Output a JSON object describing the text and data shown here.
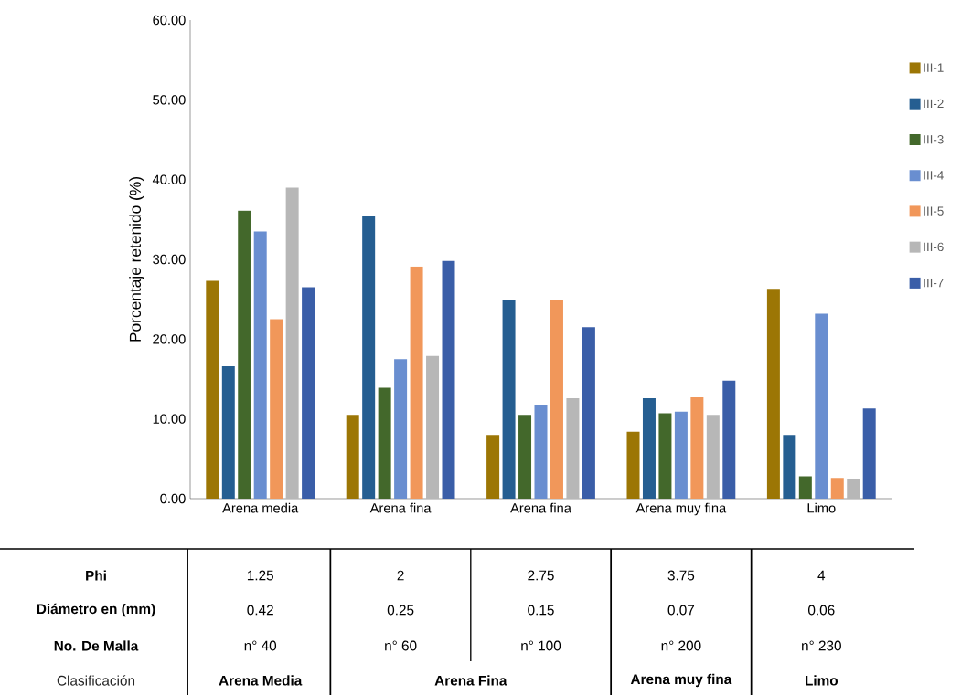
{
  "chart_data": {
    "type": "bar",
    "ylabel": "Porcentaje retenido (%)",
    "categories": [
      "Arena media",
      "Arena fina",
      "Arena fina",
      "Arena muy fina",
      "Limo"
    ],
    "series": [
      {
        "name": "III-1",
        "color": "#9c7605",
        "values": [
          27.3,
          10.5,
          8.0,
          8.4,
          26.3
        ]
      },
      {
        "name": "III-2",
        "color": "#255e91",
        "values": [
          16.6,
          35.5,
          24.9,
          12.6,
          8.0
        ]
      },
      {
        "name": "III-3",
        "color": "#43682b",
        "values": [
          36.1,
          13.9,
          10.5,
          10.7,
          2.8
        ]
      },
      {
        "name": "III-4",
        "color": "#698ed0",
        "values": [
          33.5,
          17.5,
          11.7,
          10.9,
          23.2
        ]
      },
      {
        "name": "III-5",
        "color": "#f1975a",
        "values": [
          22.5,
          29.1,
          24.9,
          12.7,
          2.6
        ]
      },
      {
        "name": "III-6",
        "color": "#b7b7b7",
        "values": [
          39.0,
          17.9,
          12.6,
          10.5,
          2.4
        ]
      },
      {
        "name": "III-7",
        "color": "#3a5ea8",
        "values": [
          26.5,
          29.8,
          21.5,
          14.8,
          11.3
        ]
      }
    ],
    "ylim": [
      0,
      60
    ],
    "yticks": [
      {
        "value": 0,
        "label": "0.00"
      },
      {
        "value": 10,
        "label": "10.00"
      },
      {
        "value": 20,
        "label": "20.00"
      },
      {
        "value": 30,
        "label": "30.00"
      },
      {
        "value": 40,
        "label": "40.00"
      },
      {
        "value": 50,
        "label": "50.00"
      },
      {
        "value": 60,
        "label": "60.00"
      }
    ],
    "grid": false,
    "legend": "right",
    "annotations": [
      "Phi",
      "1.25",
      "2",
      "2.75",
      "3.75",
      "4",
      "Diámetro en (mm)",
      "0.42",
      "0.25",
      "0.15",
      "0.07",
      "0.06",
      "No. De Malla",
      "n° 40",
      "n° 60",
      "n° 100",
      "n° 200",
      "n° 230",
      "Clasificación",
      "Arena Media",
      "Arena Fina",
      "Arena muy fina",
      "Limo"
    ]
  }
}
